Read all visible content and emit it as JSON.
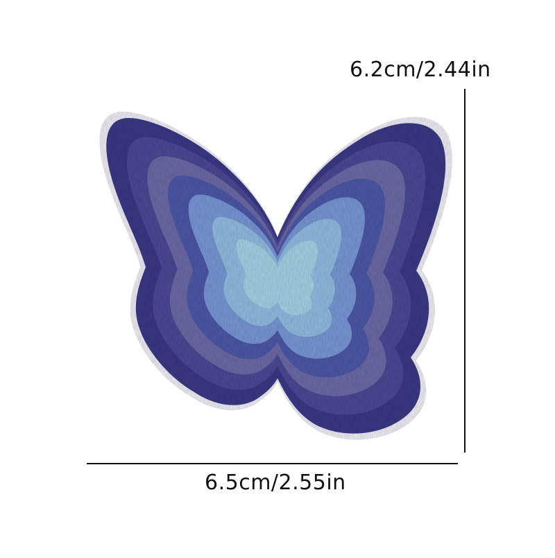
{
  "dimensions": {
    "height_label": "6.2cm/2.44in",
    "width_label": "6.5cm/2.55in"
  },
  "patch": {
    "subject": "embroidered butterfly patch",
    "colors": {
      "border": "#f1eef7",
      "outer": "#3d3a86",
      "ring2": "#4e4b96",
      "ring3": "#6e6aa8",
      "ring4": "#4d5aa8",
      "ring5": "#7a98d6",
      "ring6": "#93bde3",
      "center": "#a6d3e6"
    }
  },
  "colors": {
    "dimension_line": "#111111",
    "background": "#ffffff"
  }
}
